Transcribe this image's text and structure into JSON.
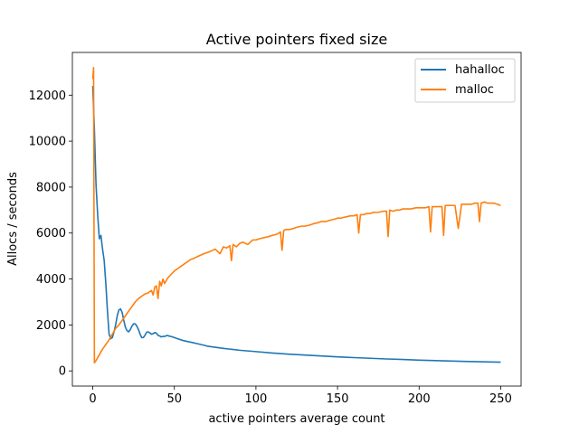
{
  "chart_data": {
    "type": "line",
    "title": "Active pointers fixed size",
    "xlabel": "active pointers average count",
    "ylabel": "Allocs / seconds",
    "xlim": [
      -12.5,
      262.5
    ],
    "ylim": [
      -660,
      13860
    ],
    "xticks": [
      0,
      50,
      100,
      150,
      200,
      250
    ],
    "yticks": [
      0,
      2000,
      4000,
      6000,
      8000,
      10000,
      12000
    ],
    "grid": false,
    "legend_position": "top-right",
    "series": [
      {
        "name": "hahalloc",
        "color": "#1f77b4",
        "x": [
          0,
          1,
          2,
          3,
          4,
          5,
          6,
          7,
          8,
          9,
          10,
          11,
          12,
          13,
          14,
          15,
          16,
          17,
          18,
          19,
          20,
          21,
          22,
          23,
          24,
          25,
          26,
          27,
          28,
          29,
          30,
          31,
          32,
          33,
          34,
          35,
          36,
          37,
          38,
          39,
          40,
          41,
          42,
          43,
          44,
          45,
          46,
          47,
          48,
          50,
          52,
          55,
          58,
          60,
          62,
          65,
          68,
          70,
          75,
          80,
          85,
          90,
          95,
          100,
          110,
          120,
          130,
          140,
          150,
          160,
          170,
          180,
          190,
          200,
          210,
          220,
          230,
          240,
          250
        ],
        "values": [
          12400,
          10500,
          8100,
          6800,
          5750,
          5900,
          5300,
          4800,
          3800,
          2600,
          1600,
          1400,
          1450,
          1700,
          2000,
          2400,
          2650,
          2700,
          2550,
          2200,
          1900,
          1750,
          1700,
          1800,
          1950,
          2050,
          2050,
          1950,
          1800,
          1600,
          1450,
          1450,
          1550,
          1680,
          1700,
          1650,
          1600,
          1620,
          1670,
          1640,
          1550,
          1520,
          1480,
          1500,
          1500,
          1530,
          1540,
          1510,
          1500,
          1450,
          1400,
          1330,
          1280,
          1250,
          1220,
          1170,
          1120,
          1080,
          1030,
          980,
          940,
          900,
          870,
          840,
          780,
          730,
          690,
          650,
          610,
          580,
          550,
          520,
          500,
          470,
          450,
          430,
          410,
          395,
          380
        ]
      },
      {
        "name": "malloc",
        "color": "#ff7f0e",
        "x": [
          0,
          0.5,
          1,
          2,
          4,
          6,
          8,
          10,
          12,
          14,
          16,
          18,
          20,
          22,
          24,
          26,
          28,
          30,
          32,
          34,
          36,
          37,
          38,
          39,
          40,
          41,
          42,
          43,
          44,
          46,
          48,
          50,
          52,
          55,
          58,
          60,
          62,
          65,
          68,
          70,
          72,
          75,
          78,
          80,
          82,
          84,
          85,
          86,
          88,
          90,
          92,
          95,
          98,
          100,
          102,
          105,
          108,
          110,
          113,
          115,
          116,
          117,
          118,
          120,
          123,
          125,
          128,
          130,
          133,
          135,
          138,
          140,
          143,
          145,
          148,
          150,
          152,
          155,
          158,
          160,
          162,
          163,
          164,
          166,
          168,
          170,
          172,
          175,
          178,
          180,
          181,
          182,
          184,
          186,
          188,
          190,
          192,
          195,
          198,
          200,
          202,
          204,
          206,
          207,
          208,
          210,
          212,
          214,
          215,
          216,
          218,
          220,
          222,
          224,
          226,
          228,
          230,
          232,
          234,
          236,
          237,
          238,
          240,
          242,
          244,
          246,
          248,
          250
        ],
        "values": [
          12700,
          13200,
          350,
          450,
          700,
          950,
          1150,
          1350,
          1600,
          1850,
          2000,
          2200,
          2400,
          2600,
          2800,
          3000,
          3150,
          3250,
          3350,
          3400,
          3500,
          3300,
          3650,
          3700,
          3150,
          3900,
          3700,
          4000,
          3800,
          4050,
          4200,
          4350,
          4450,
          4600,
          4750,
          4850,
          4900,
          5000,
          5100,
          5150,
          5200,
          5300,
          5100,
          5400,
          5350,
          5450,
          4800,
          5500,
          5400,
          5550,
          5600,
          5500,
          5700,
          5700,
          5750,
          5800,
          5850,
          5900,
          5950,
          6050,
          5250,
          6100,
          6150,
          6150,
          6200,
          6250,
          6300,
          6300,
          6350,
          6400,
          6450,
          6500,
          6500,
          6550,
          6600,
          6650,
          6650,
          6700,
          6750,
          6750,
          6800,
          6000,
          6800,
          6800,
          6850,
          6850,
          6900,
          6900,
          6950,
          6950,
          5850,
          7000,
          6950,
          7000,
          7000,
          7050,
          7050,
          7050,
          7100,
          7100,
          7100,
          7100,
          7150,
          6050,
          7150,
          7150,
          7150,
          7150,
          5900,
          7200,
          7200,
          7200,
          7200,
          6200,
          7250,
          7250,
          7250,
          7250,
          7300,
          7300,
          6500,
          7300,
          7350,
          7300,
          7300,
          7300,
          7250,
          7200
        ]
      }
    ]
  }
}
